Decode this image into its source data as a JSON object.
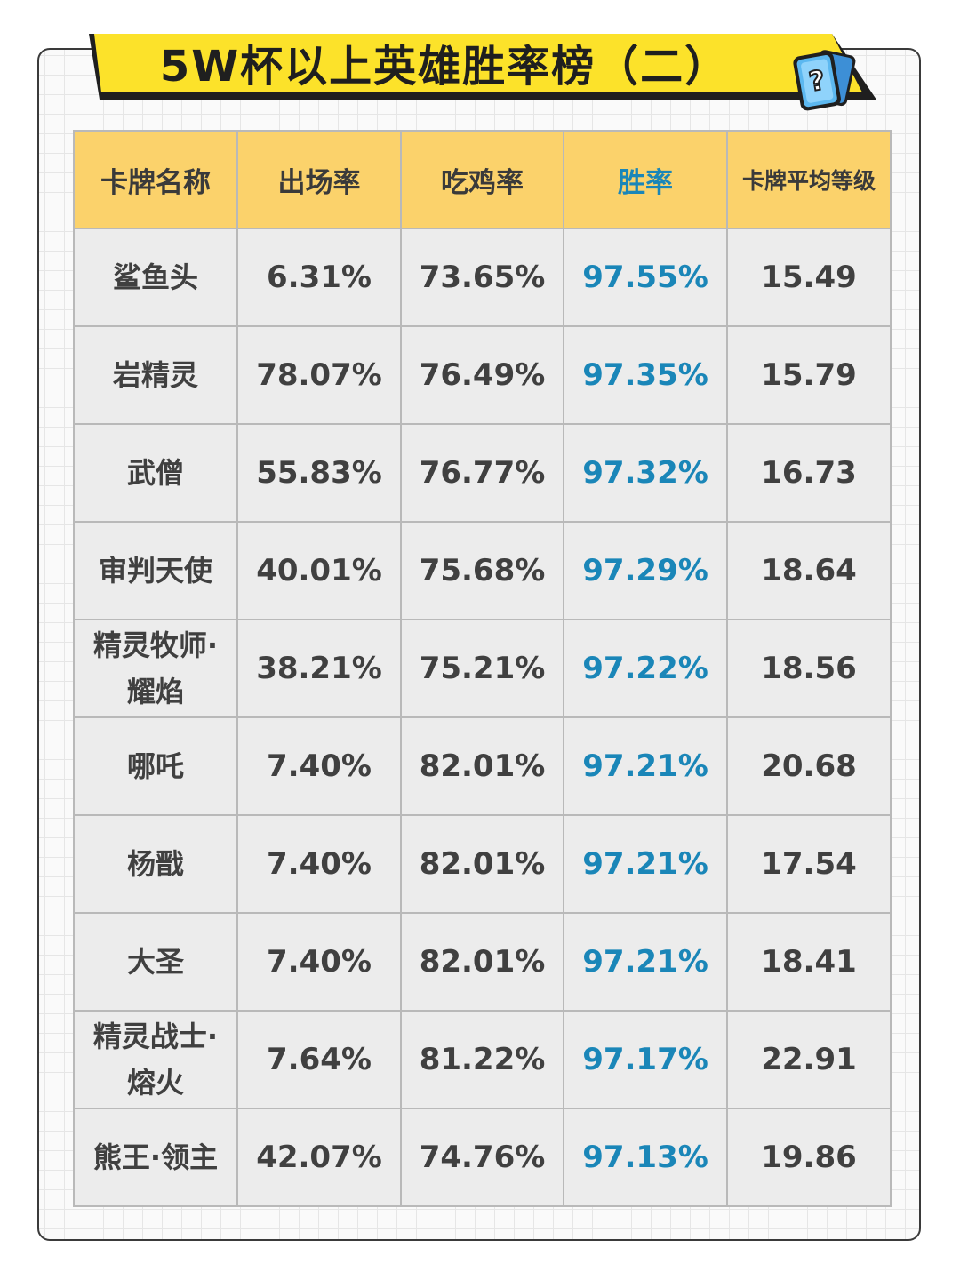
{
  "title": "5W杯以上英雄胜率榜（二）",
  "colors": {
    "banner_yellow": "#fce22a",
    "header_yellow": "#fbd26b",
    "cell_gray": "#ececec",
    "winrate_blue": "#1a86b8",
    "icon_blue": "#5cb8f0"
  },
  "icons": {
    "help": "question-card-icon"
  },
  "table": {
    "columns": [
      "卡牌名称",
      "出场率",
      "吃鸡率",
      "胜率",
      "卡牌平均等级"
    ],
    "rows": [
      {
        "name": "鲨鱼头",
        "appear": "6.31%",
        "top1": "73.65%",
        "win": "97.55%",
        "level": "15.49"
      },
      {
        "name": "岩精灵",
        "appear": "78.07%",
        "top1": "76.49%",
        "win": "97.35%",
        "level": "15.79"
      },
      {
        "name": "武僧",
        "appear": "55.83%",
        "top1": "76.77%",
        "win": "97.32%",
        "level": "16.73"
      },
      {
        "name": "审判天使",
        "appear": "40.01%",
        "top1": "75.68%",
        "win": "97.29%",
        "level": "18.64"
      },
      {
        "name": "精灵牧师·\n耀焰",
        "appear": "38.21%",
        "top1": "75.21%",
        "win": "97.22%",
        "level": "18.56"
      },
      {
        "name": "哪吒",
        "appear": "7.40%",
        "top1": "82.01%",
        "win": "97.21%",
        "level": "20.68"
      },
      {
        "name": "杨戬",
        "appear": "7.40%",
        "top1": "82.01%",
        "win": "97.21%",
        "level": "17.54"
      },
      {
        "name": "大圣",
        "appear": "7.40%",
        "top1": "82.01%",
        "win": "97.21%",
        "level": "18.41"
      },
      {
        "name": "精灵战士·\n熔火",
        "appear": "7.64%",
        "top1": "81.22%",
        "win": "97.17%",
        "level": "22.91"
      },
      {
        "name": "熊王·领主",
        "appear": "42.07%",
        "top1": "74.76%",
        "win": "97.13%",
        "level": "19.86"
      }
    ]
  }
}
